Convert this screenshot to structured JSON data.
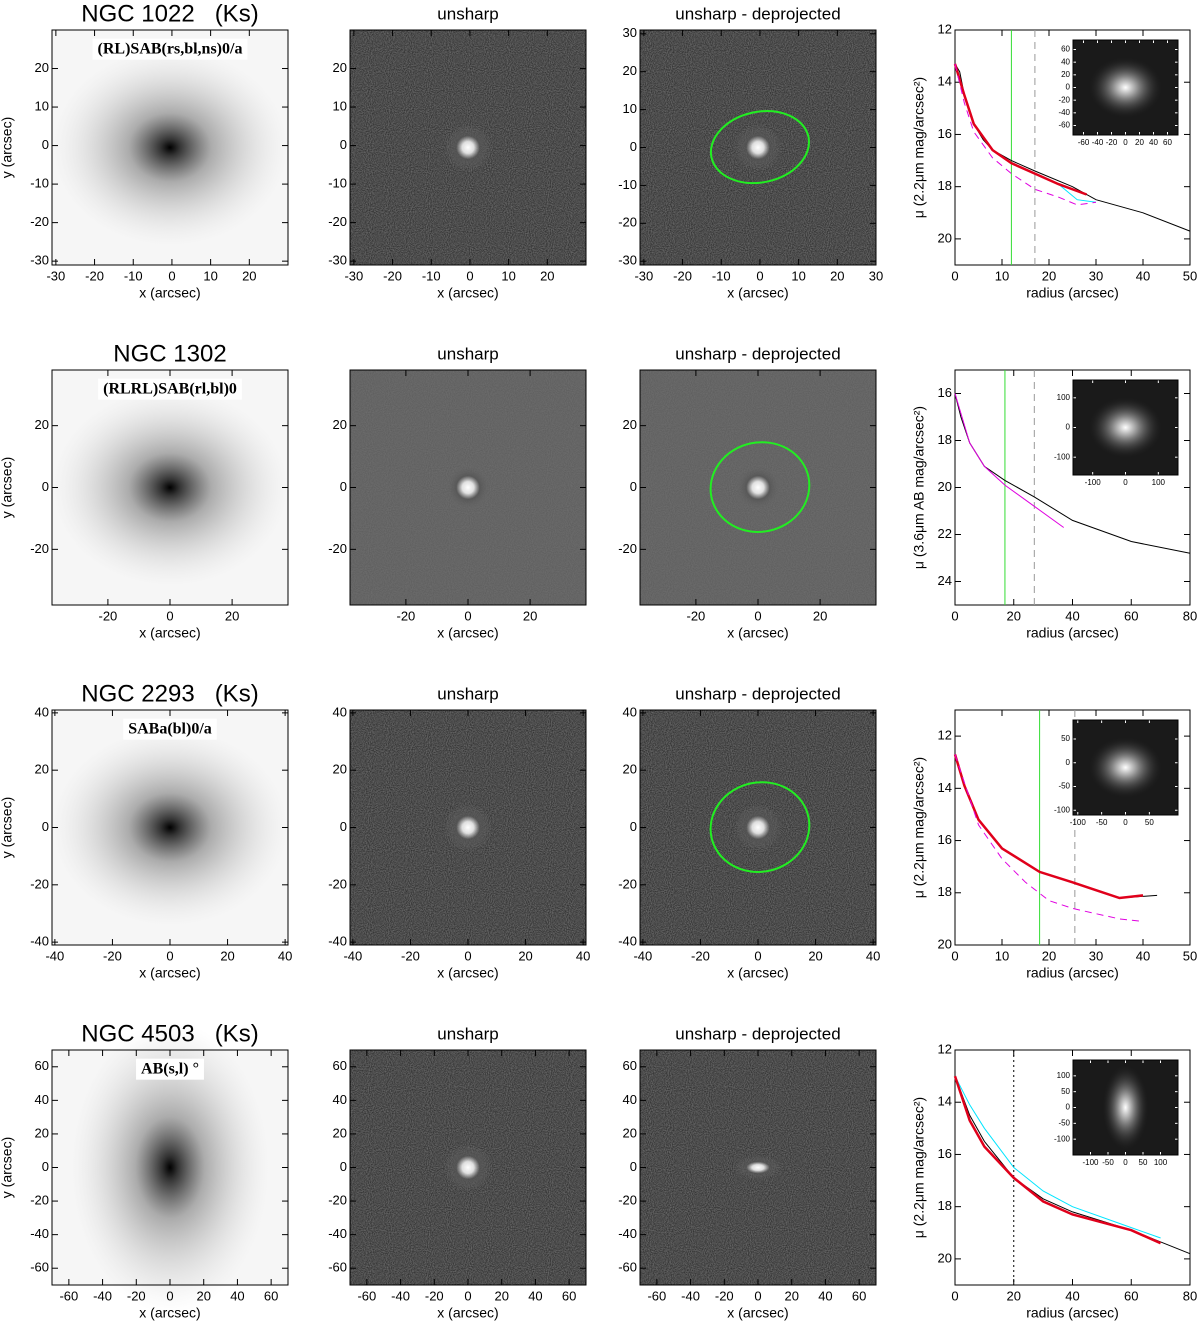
{
  "chart_data": [
    {
      "type": "image",
      "title": "NGC 1022   (Ks)",
      "annotation": "(RL)SAB(rs,bl,ns)0/a",
      "xlabel": "x (arcsec)",
      "ylabel": "y (arcsec)",
      "xlim": [
        -31,
        30
      ],
      "ylim": [
        -31,
        30
      ],
      "xticks": [
        -30,
        -20,
        -10,
        0,
        10,
        20
      ],
      "yticks": [
        -30,
        -20,
        -10,
        0,
        10,
        20
      ]
    },
    {
      "type": "image",
      "title": "unsharp",
      "xlabel": "x (arcsec)",
      "xlim": [
        -31,
        30
      ],
      "ylim": [
        -31,
        30
      ],
      "xticks": [
        -30,
        -20,
        -10,
        0,
        10,
        20
      ],
      "yticks": [
        -30,
        -20,
        -10,
        0,
        10,
        20
      ]
    },
    {
      "type": "image",
      "title": "unsharp - deprojected",
      "xlabel": "x (arcsec)",
      "xlim": [
        -31,
        30
      ],
      "ylim": [
        -31,
        31
      ],
      "xticks": [
        -30,
        -20,
        -10,
        0,
        10,
        20,
        30
      ],
      "yticks": [
        -30,
        -20,
        -10,
        0,
        10,
        20,
        30
      ]
    },
    {
      "type": "line",
      "xlabel": "radius (arcsec)",
      "ylabel": "μ (2.2μm mag/arcsec²)",
      "xlim": [
        0,
        50
      ],
      "ylim": [
        12,
        21
      ],
      "y_inverted": true,
      "xticks": [
        0,
        10,
        20,
        30,
        40,
        50
      ],
      "yticks": [
        12,
        14,
        16,
        18,
        20
      ],
      "vlines": [
        {
          "x": 12,
          "color": "#33dd33",
          "style": "solid"
        },
        {
          "x": 17,
          "color": "#999999",
          "style": "dashed"
        }
      ],
      "series": [
        {
          "color": "#000000",
          "x": [
            0,
            1,
            2,
            4,
            6,
            8,
            12,
            17,
            25,
            30,
            40,
            50
          ],
          "values": [
            13.3,
            13.6,
            14.5,
            15.6,
            16.2,
            16.6,
            17.0,
            17.4,
            18.0,
            18.5,
            19.0,
            19.7
          ]
        },
        {
          "color": "#00e5ff",
          "x": [
            0,
            2,
            4,
            8,
            12,
            17,
            22,
            26,
            30
          ],
          "values": [
            13.3,
            14.5,
            15.6,
            16.6,
            17.1,
            17.5,
            17.9,
            18.5,
            18.6
          ]
        },
        {
          "color": "#e0001b",
          "width": 2.5,
          "x": [
            0,
            2,
            4,
            8,
            12,
            17,
            22,
            28
          ],
          "values": [
            13.3,
            14.5,
            15.6,
            16.6,
            17.1,
            17.5,
            17.9,
            18.3
          ]
        },
        {
          "color": "#e000e0",
          "style": "dashed",
          "x": [
            0,
            2,
            4,
            8,
            12,
            17,
            22,
            26,
            30
          ],
          "values": [
            13.3,
            14.8,
            15.9,
            16.9,
            17.5,
            18.1,
            18.4,
            18.7,
            18.6
          ]
        }
      ],
      "inset": {
        "xlim": [
          -75,
          75
        ],
        "ylim": [
          -75,
          75
        ],
        "xticks": [
          -60,
          -40,
          -20,
          0,
          20,
          40,
          60
        ],
        "yticks": [
          -60,
          -40,
          -20,
          0,
          20,
          40,
          60
        ]
      }
    },
    {
      "type": "image",
      "title": "NGC 1302",
      "annotation": "(RLRL)SAB(rl,bl)0",
      "xlabel": "x (arcsec)",
      "ylabel": "y (arcsec)",
      "xlim": [
        -38,
        38
      ],
      "ylim": [
        -38,
        38
      ],
      "xticks": [
        -20,
        0,
        20
      ],
      "yticks": [
        -20,
        0,
        20
      ]
    },
    {
      "type": "image",
      "title": "unsharp",
      "xlabel": "x (arcsec)",
      "xlim": [
        -38,
        38
      ],
      "ylim": [
        -38,
        38
      ],
      "xticks": [
        -20,
        0,
        20
      ],
      "yticks": [
        -20,
        0,
        20
      ]
    },
    {
      "type": "image",
      "title": "unsharp - deprojected",
      "xlabel": "x (arcsec)",
      "xlim": [
        -38,
        38
      ],
      "ylim": [
        -38,
        38
      ],
      "xticks": [
        -20,
        0,
        20
      ],
      "yticks": [
        -20,
        0,
        20
      ]
    },
    {
      "type": "line",
      "xlabel": "radius (arcsec)",
      "ylabel": "μ (3.6μm AB mag/arcsec²)",
      "xlim": [
        0,
        80
      ],
      "ylim": [
        15,
        25
      ],
      "y_inverted": true,
      "xticks": [
        0,
        20,
        40,
        60,
        80
      ],
      "yticks": [
        16,
        18,
        20,
        22,
        24
      ],
      "vlines": [
        {
          "x": 17,
          "color": "#33dd33",
          "style": "solid"
        },
        {
          "x": 27,
          "color": "#999999",
          "style": "dashed"
        }
      ],
      "series": [
        {
          "color": "#000000",
          "x": [
            0,
            2,
            5,
            10,
            17,
            27,
            40,
            60,
            80
          ],
          "values": [
            16.0,
            17.0,
            18.1,
            19.1,
            19.7,
            20.4,
            21.4,
            22.3,
            22.8
          ]
        },
        {
          "color": "#e000e0",
          "x": [
            0,
            5,
            10,
            17,
            27,
            37
          ],
          "values": [
            16.0,
            18.1,
            19.1,
            19.9,
            20.8,
            21.7
          ]
        }
      ],
      "inset": {
        "xlim": [
          -160,
          160
        ],
        "ylim": [
          -160,
          160
        ],
        "xticks": [
          -100,
          0,
          100
        ],
        "yticks": [
          -100,
          0,
          100
        ]
      }
    },
    {
      "type": "image",
      "title": "NGC 2293   (Ks)",
      "annotation": "SABa(bl)0/a",
      "xlabel": "x (arcsec)",
      "ylabel": "y (arcsec)",
      "xlim": [
        -41,
        41
      ],
      "ylim": [
        -41,
        41
      ],
      "xticks": [
        -40,
        -20,
        0,
        20,
        40
      ],
      "yticks": [
        -40,
        -20,
        0,
        20,
        40
      ]
    },
    {
      "type": "image",
      "title": "unsharp",
      "xlabel": "x (arcsec)",
      "xlim": [
        -41,
        41
      ],
      "ylim": [
        -41,
        41
      ],
      "xticks": [
        -40,
        -20,
        0,
        20,
        40
      ],
      "yticks": [
        -40,
        -20,
        0,
        20,
        40
      ]
    },
    {
      "type": "image",
      "title": "unsharp - deprojected",
      "xlabel": "x (arcsec)",
      "xlim": [
        -41,
        41
      ],
      "ylim": [
        -41,
        41
      ],
      "xticks": [
        -40,
        -20,
        0,
        20,
        40
      ],
      "yticks": [
        -40,
        -20,
        0,
        20,
        40
      ]
    },
    {
      "type": "line",
      "xlabel": "radius (arcsec)",
      "ylabel": "μ (2.2μm mag/arcsec²)",
      "xlim": [
        0,
        50
      ],
      "ylim": [
        11,
        20
      ],
      "y_inverted": true,
      "xticks": [
        0,
        10,
        20,
        30,
        40,
        50
      ],
      "yticks": [
        12,
        14,
        16,
        18,
        20
      ],
      "vlines": [
        {
          "x": 18,
          "color": "#33dd33",
          "style": "solid"
        },
        {
          "x": 25.5,
          "color": "#999999",
          "style": "dashed"
        }
      ],
      "series": [
        {
          "color": "#000000",
          "x": [
            0,
            2,
            5,
            10,
            18,
            25,
            30,
            35,
            43
          ],
          "values": [
            12.7,
            13.9,
            15.2,
            16.3,
            17.2,
            17.6,
            17.9,
            18.2,
            18.1
          ]
        },
        {
          "color": "#00e5ff",
          "x": [
            0,
            2,
            5,
            10,
            18,
            25,
            30,
            35,
            40
          ],
          "values": [
            12.7,
            13.9,
            15.2,
            16.3,
            17.2,
            17.6,
            17.9,
            18.2,
            18.1
          ]
        },
        {
          "color": "#e0001b",
          "width": 2.5,
          "x": [
            0,
            2,
            5,
            10,
            18,
            25,
            30,
            35,
            40
          ],
          "values": [
            12.7,
            13.9,
            15.2,
            16.3,
            17.2,
            17.6,
            17.9,
            18.2,
            18.1
          ]
        },
        {
          "color": "#e000e0",
          "style": "dashed",
          "x": [
            0,
            5,
            10,
            15,
            20,
            25,
            30,
            35,
            40
          ],
          "values": [
            12.7,
            15.4,
            16.7,
            17.6,
            18.3,
            18.6,
            18.8,
            19.0,
            19.1
          ]
        }
      ],
      "inset": {
        "xlim": [
          -110,
          110
        ],
        "ylim": [
          -110,
          90
        ],
        "xticks": [
          -100,
          -50,
          0,
          50
        ],
        "yticks": [
          -100,
          -50,
          0,
          50
        ]
      }
    },
    {
      "type": "image",
      "title": "NGC 4503   (Ks)",
      "annotation": "AB(s,l) °",
      "xlabel": "x (arcsec)",
      "ylabel": "y (arcsec)",
      "xlim": [
        -70,
        70
      ],
      "ylim": [
        -70,
        70
      ],
      "xticks": [
        -60,
        -40,
        -20,
        0,
        20,
        40,
        60
      ],
      "yticks": [
        -60,
        -40,
        -20,
        0,
        20,
        40,
        60
      ]
    },
    {
      "type": "image",
      "title": "unsharp",
      "xlabel": "x (arcsec)",
      "xlim": [
        -70,
        70
      ],
      "ylim": [
        -70,
        70
      ],
      "xticks": [
        -60,
        -40,
        -20,
        0,
        20,
        40,
        60
      ],
      "yticks": [
        -60,
        -40,
        -20,
        0,
        20,
        40,
        60
      ]
    },
    {
      "type": "image",
      "title": "unsharp - deprojected",
      "xlabel": "x (arcsec)",
      "xlim": [
        -70,
        70
      ],
      "ylim": [
        -70,
        70
      ],
      "xticks": [
        -60,
        -40,
        -20,
        0,
        20,
        40,
        60
      ],
      "yticks": [
        -60,
        -40,
        -20,
        0,
        20,
        40,
        60
      ]
    },
    {
      "type": "line",
      "xlabel": "radius (arcsec)",
      "ylabel": "μ (2.2μm mag/arcsec²)",
      "xlim": [
        0,
        80
      ],
      "ylim": [
        12,
        21
      ],
      "y_inverted": true,
      "xticks": [
        0,
        20,
        40,
        60,
        80
      ],
      "yticks": [
        12,
        14,
        16,
        18,
        20
      ],
      "vlines": [
        {
          "x": 20,
          "color": "#000000",
          "style": "dotted"
        }
      ],
      "series": [
        {
          "color": "#000000",
          "x": [
            0,
            5,
            10,
            20,
            30,
            40,
            60,
            80
          ],
          "values": [
            13.0,
            14.5,
            15.5,
            16.9,
            17.7,
            18.2,
            18.9,
            19.8
          ]
        },
        {
          "color": "#00e5ff",
          "x": [
            0,
            5,
            10,
            20,
            30,
            40,
            60,
            70
          ],
          "values": [
            13.0,
            14.1,
            15.0,
            16.5,
            17.4,
            18.0,
            18.8,
            19.2
          ]
        },
        {
          "color": "#e0001b",
          "width": 2.5,
          "x": [
            0,
            5,
            10,
            20,
            30,
            40,
            60,
            70
          ],
          "values": [
            13.0,
            14.7,
            15.7,
            16.9,
            17.8,
            18.3,
            18.9,
            19.4
          ]
        }
      ],
      "inset": {
        "xlim": [
          -150,
          150
        ],
        "ylim": [
          -150,
          150
        ],
        "xticks": [
          -100,
          -50,
          0,
          50,
          100
        ],
        "yticks": [
          -100,
          -50,
          0,
          50,
          100
        ]
      }
    }
  ]
}
